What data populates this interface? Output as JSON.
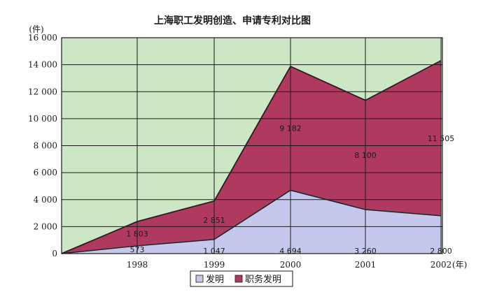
{
  "chart_data": {
    "type": "area",
    "title": "上海职工发明创造、申请专利对比图",
    "ylabel": "(件)",
    "x_unit": "(年)",
    "ylim": [
      0,
      16000
    ],
    "y_ticks": [
      0,
      2000,
      4000,
      6000,
      8000,
      10000,
      12000,
      14000,
      16000
    ],
    "y_tick_labels": [
      "0",
      "2 000",
      "4 000",
      "6 000",
      "8 000",
      "10 000",
      "12 000",
      "14 000",
      "16 000"
    ],
    "x_tick_labels": [
      "1998",
      "1999",
      "2000",
      "2001",
      "2002"
    ],
    "stacked": true,
    "grid": true,
    "legend_position": "bottom-center",
    "x_points": [
      "origin",
      "1998",
      "1999",
      "2000",
      "2001",
      "2002"
    ],
    "series": [
      {
        "name": "发明",
        "color": "#c5c8ec",
        "values": [
          0,
          573,
          1047,
          4694,
          3260,
          2800
        ],
        "labels": [
          "",
          "573",
          "1 047",
          "4 694",
          "3 260",
          "2 800"
        ]
      },
      {
        "name": "职务发明",
        "color": "#b03a5f",
        "values": [
          0,
          1803,
          2851,
          9182,
          8100,
          11505
        ],
        "labels": [
          "",
          "1 803",
          "2 851",
          "9 182",
          "8 100",
          "11 505"
        ]
      }
    ]
  },
  "colors": {
    "plot_background": "#cde6c4",
    "grid": "#1a1a1a"
  }
}
